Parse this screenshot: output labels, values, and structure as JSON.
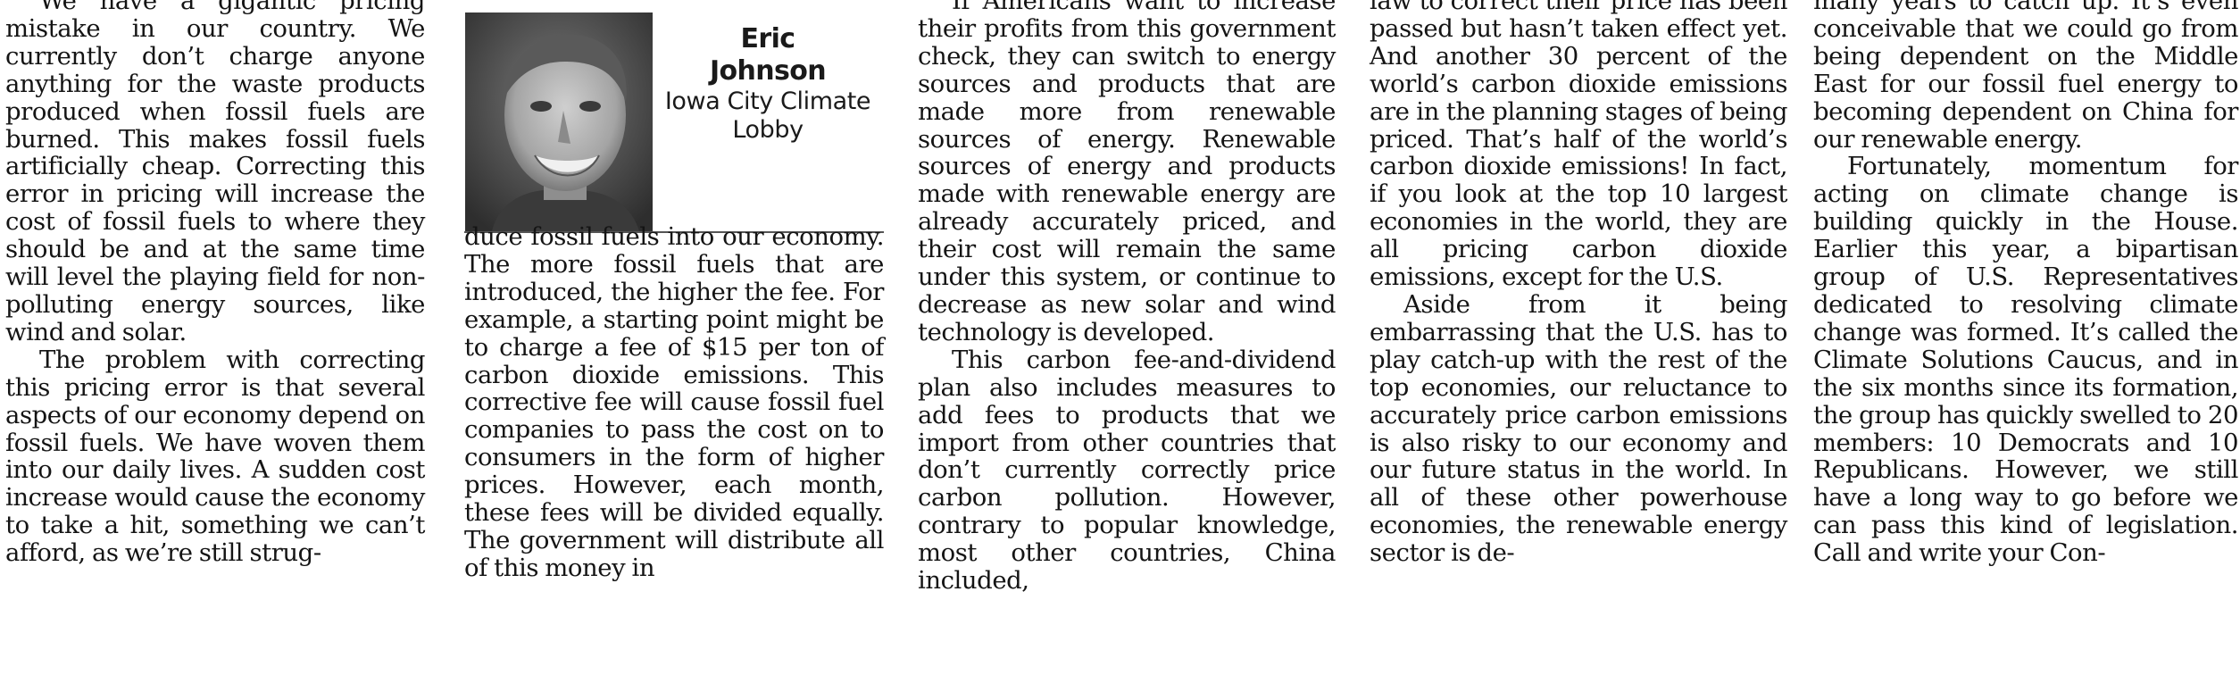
{
  "article": {
    "col1": [
      "We have a gigantic pricing mistake in our country. We currently don’t charge anyone anything for the waste products produced when fossil fuels are burned. This makes fossil fuels artificially cheap. Correcting this error in pricing will increase the cost of fossil fuels to where they should be and at the same time will level the playing field for non-polluting energy sources, like wind and solar.",
      "The problem with correcting this pricing error is that several aspects of our economy depend on fossil fuels. We have woven them into our daily lives. A sudden cost increase would cause the economy to take a hit, something we can’t afford, as we’re still strug-"
    ],
    "col2": [
      "duce fossil fuels into our economy. The more fossil fuels that are introduced, the higher the fee. For example, a starting point might be to charge a fee of $15 per ton of carbon dioxide emissions. This corrective fee will cause fossil fuel companies to pass the cost on to consumers in the form of higher prices. However, each month, these fees will be divided equally. The government will distribute all of this money in"
    ],
    "col3": [
      "If Americans want to increase their profits from this government check, they can switch to energy sources and products that are made more from renewable sources of energy. Renewable sources of energy and products made with renewable energy are already accurately priced, and their cost will remain the same under this system, or continue to decrease as new solar and wind technology is developed.",
      "This carbon fee-and-dividend plan also includes measures to add fees to products that we import from other countries that don’t currently correctly price carbon pollution. However, contrary to popular knowledge, most other countries, China included,"
    ],
    "col4": [
      "law to correct their price has been passed but hasn’t taken effect yet. And another 30 percent of the world’s carbon dioxide emissions are in the planning stages of being priced. That’s half of the world’s carbon dioxide emissions! In fact, if you look at the top 10 largest economies in the world, they are all pricing carbon dioxide emissions, except for the U.S.",
      "Aside from it being embarrassing that the U.S. has to play catch-up with the rest of the top economies, our reluctance to accurately price carbon emissions is also risky to our economy and our future status in the world. In all of these other powerhouse economies, the renewable energy sector is de-"
    ],
    "col5": [
      "many years to catch up. It’s even conceivable that we could go from being dependent on the Middle East for our fossil fuel energy to becoming dependent on China for our renewable energy.",
      "Fortunately, momentum for acting on climate change is building quickly in the House. Earlier this year, a bipartisan group of U.S. Representatives dedicated to resolving climate change was formed. It’s called the Climate Solutions Caucus, and in the six months since its formation, the group has quickly swelled to 20 members: 10 Democrats and 10 Republicans. However, we still have a long way to go before we can pass this kind of legislation. Call and write your Con-"
    ]
  },
  "byline": {
    "name_line1": "Eric",
    "name_line2": "Johnson",
    "org_line1": "Iowa City Climate",
    "org_line2": "Lobby"
  },
  "colors": {
    "text": "#141414",
    "rule": "#555555"
  }
}
